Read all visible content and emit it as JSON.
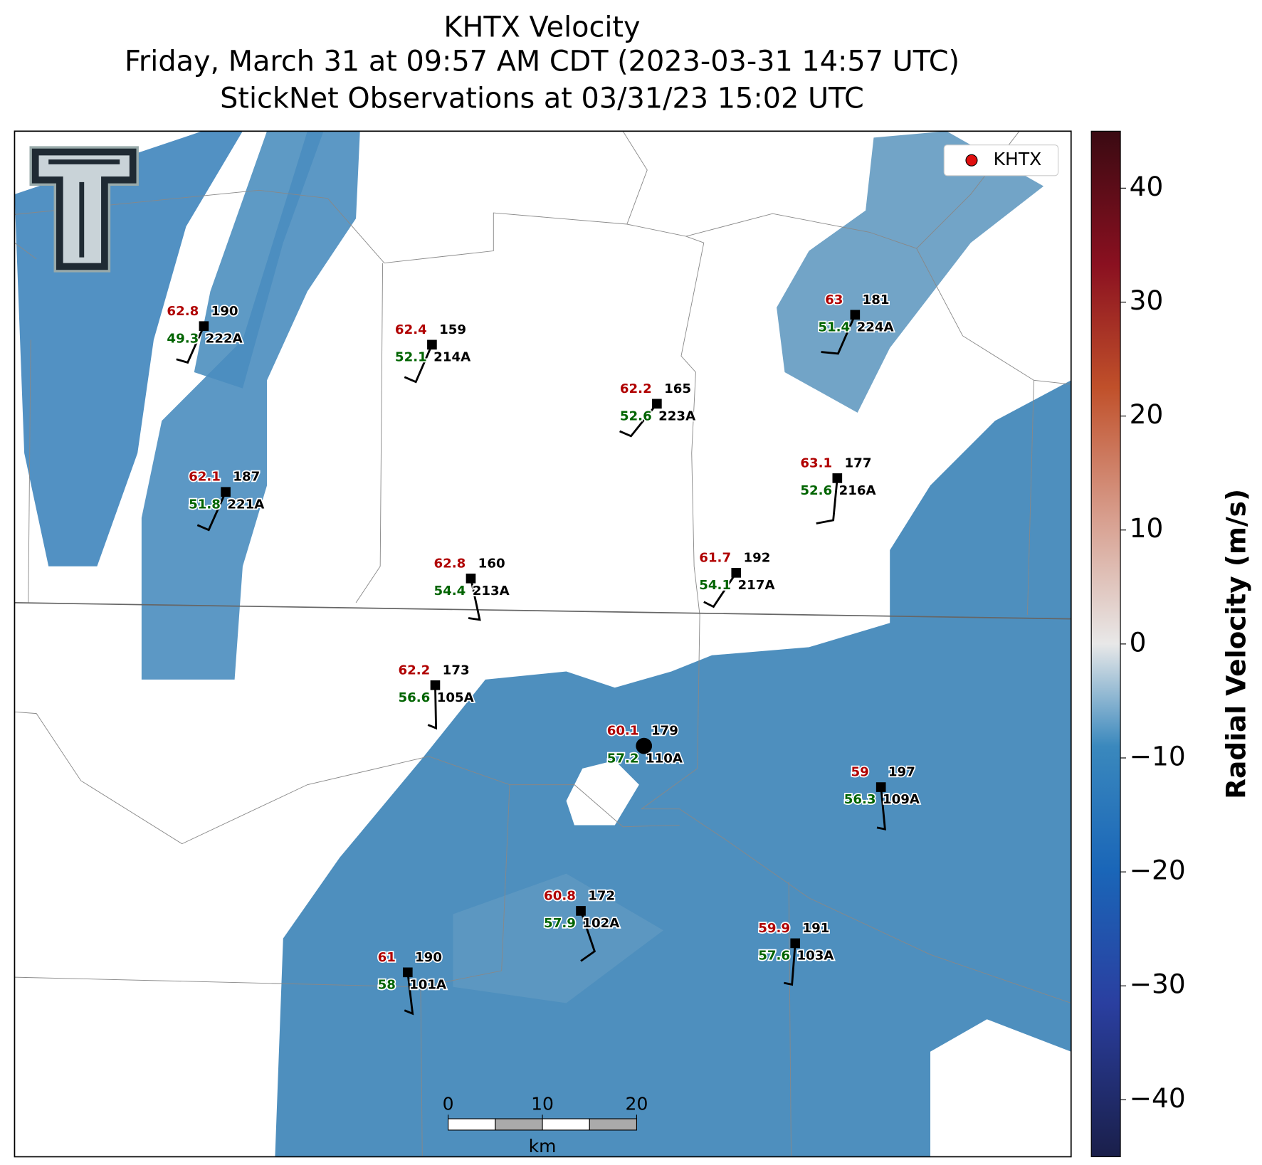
{
  "title": [
    "KHTX Velocity",
    "Friday, March 31 at 09:57 AM CDT (2023-03-31 14:57 UTC)",
    "StickNet Observations at 03/31/23 15:02 UTC"
  ],
  "legend": [
    "KHTX"
  ],
  "colorbar": {
    "label": "Radial Velocity (m/s)",
    "lim": [
      -45,
      45
    ],
    "ticks": [
      {
        "value": -40,
        "label": "−40"
      },
      {
        "value": -30,
        "label": "−30"
      },
      {
        "value": -20,
        "label": "−20"
      },
      {
        "value": -10,
        "label": "−10"
      },
      0,
      10,
      20,
      30,
      40
    ]
  },
  "scale_bar": {
    "ticks": [
      0,
      10,
      20
    ],
    "unit": "km"
  },
  "stations": [
    {
      "id": "222A",
      "temperature": 62.8,
      "dewpoint": 49.3,
      "value": 190
    },
    {
      "id": "214A",
      "temperature": 62.4,
      "dewpoint": 52.1,
      "value": 159
    },
    {
      "id": "223A",
      "temperature": 62.2,
      "dewpoint": 52.6,
      "value": 165
    },
    {
      "id": "224A",
      "temperature": 63.0,
      "dewpoint": 51.4,
      "value": 181
    },
    {
      "id": "221A",
      "temperature": 62.1,
      "dewpoint": 51.8,
      "value": 187
    },
    {
      "id": "216A",
      "temperature": 63.1,
      "dewpoint": 52.6,
      "value": 177
    },
    {
      "id": "213A",
      "temperature": 62.8,
      "dewpoint": 54.4,
      "value": 160
    },
    {
      "id": "217A",
      "temperature": 61.7,
      "dewpoint": 54.1,
      "value": 192
    },
    {
      "id": "105A",
      "temperature": 62.2,
      "dewpoint": 56.6,
      "value": 173
    },
    {
      "id": "110A",
      "temperature": 60.1,
      "dewpoint": 57.2,
      "value": 179
    },
    {
      "id": "109A",
      "temperature": 59.0,
      "dewpoint": 56.3,
      "value": 197
    },
    {
      "id": "102A",
      "temperature": 60.8,
      "dewpoint": 57.9,
      "value": 172
    },
    {
      "id": "103A",
      "temperature": 59.9,
      "dewpoint": 57.6,
      "value": 191
    },
    {
      "id": "101A",
      "temperature": 61.0,
      "dewpoint": 58.0,
      "value": 190
    }
  ]
}
